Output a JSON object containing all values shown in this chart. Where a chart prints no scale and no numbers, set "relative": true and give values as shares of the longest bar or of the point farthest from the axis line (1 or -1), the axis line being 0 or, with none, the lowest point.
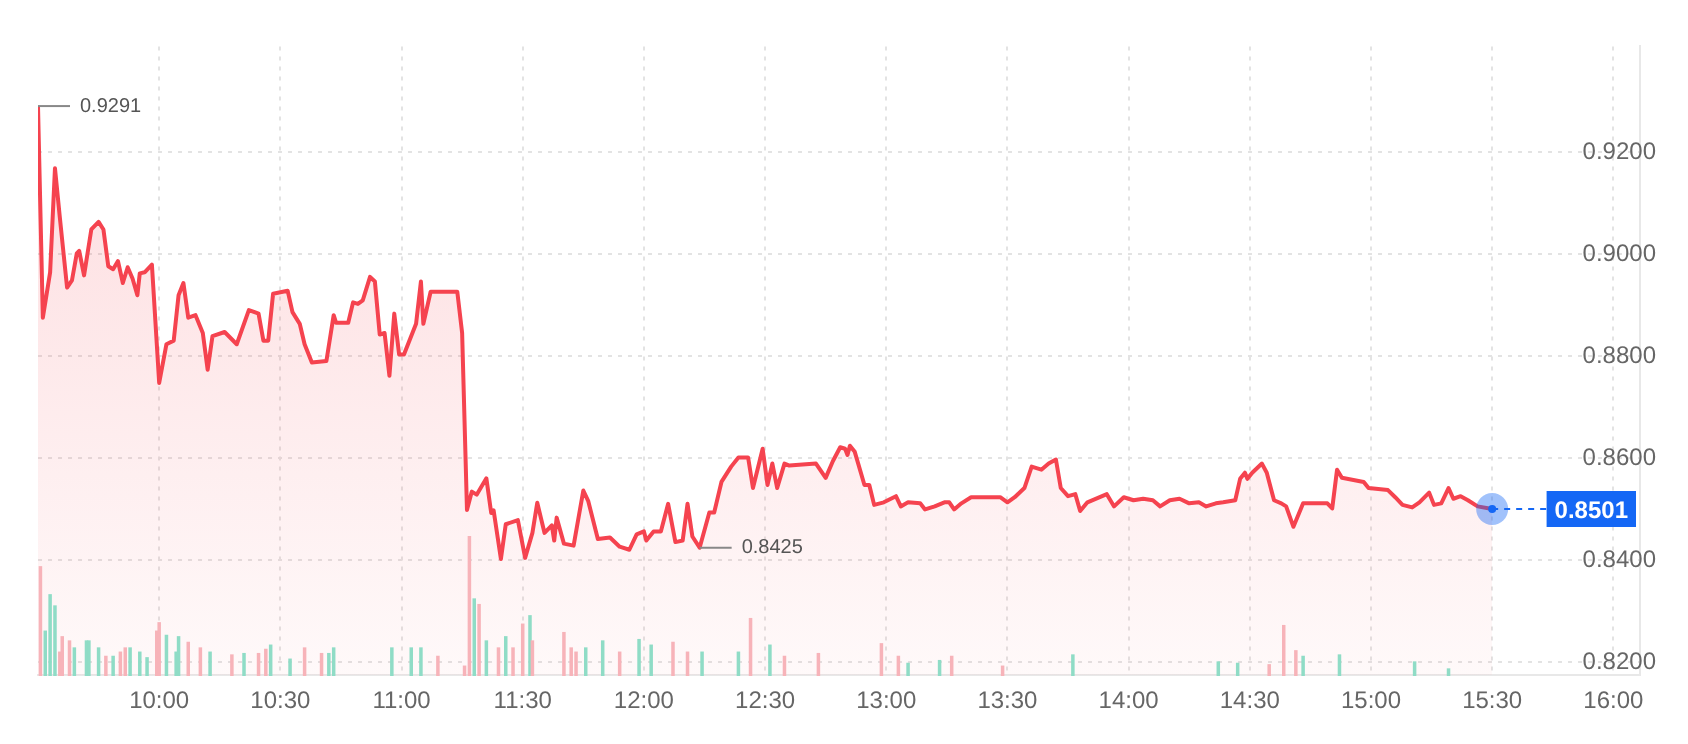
{
  "chart_data": [
    {
      "type": "area",
      "color": "#f5434f",
      "x": [
        9.5,
        9.52,
        9.55,
        9.57,
        9.59,
        9.62,
        9.64,
        9.66,
        9.67,
        9.69,
        9.72,
        9.75,
        9.77,
        9.79,
        9.81,
        9.83,
        9.85,
        9.87,
        9.89,
        9.91,
        9.92,
        9.94,
        9.97,
        10.0,
        10.03,
        10.06,
        10.08,
        10.1,
        10.12,
        10.15,
        10.18,
        10.2,
        10.22,
        10.27,
        10.32,
        10.37,
        10.41,
        10.43,
        10.45,
        10.47,
        10.53,
        10.55,
        10.58,
        10.6,
        10.63,
        10.69,
        10.72,
        10.73,
        10.78,
        10.8,
        10.82,
        10.84,
        10.87,
        10.89,
        10.91,
        10.93,
        10.95,
        10.97,
        10.99,
        11.01,
        11.06,
        11.08,
        11.09,
        11.12,
        11.23,
        11.25,
        11.27,
        11.29,
        11.31,
        11.35,
        11.37,
        11.38,
        11.41,
        11.43,
        11.48,
        11.51,
        11.54,
        11.56,
        11.59,
        11.62,
        11.63,
        11.64,
        11.67,
        11.71,
        11.75,
        11.77,
        11.81,
        11.86,
        11.9,
        11.94,
        11.97,
        12.0,
        12.01,
        12.04,
        12.07,
        12.1,
        12.13,
        12.16,
        12.18,
        12.2,
        12.23,
        12.27,
        12.29,
        12.32,
        12.36,
        12.39,
        12.43,
        12.45,
        12.49,
        12.51,
        12.53,
        12.55,
        12.58,
        12.6,
        12.71,
        12.75,
        12.78,
        12.81,
        12.83,
        12.84,
        12.85,
        12.87,
        12.91,
        12.93,
        12.95,
        12.99,
        13.04,
        13.06,
        13.09,
        13.14,
        13.16,
        13.2,
        13.24,
        13.26,
        13.28,
        13.31,
        13.35,
        13.47,
        13.5,
        13.53,
        13.57,
        13.6,
        13.64,
        13.67,
        13.7,
        13.72,
        13.75,
        13.78,
        13.8,
        13.83,
        13.91,
        13.94,
        13.98,
        14.02,
        14.06,
        14.1,
        14.13,
        14.17,
        14.21,
        14.25,
        14.29,
        14.32,
        14.36,
        14.39,
        14.44,
        14.46,
        14.48,
        14.49,
        14.51,
        14.55,
        14.57,
        14.6,
        14.63,
        14.65,
        14.68,
        14.72,
        14.82,
        14.84,
        14.86,
        14.88,
        14.97,
        14.99,
        15.07,
        15.1,
        15.13,
        15.17,
        15.2,
        15.24,
        15.26,
        15.29,
        15.32,
        15.34,
        15.37,
        15.4,
        15.44,
        15.5
      ],
      "values": [
        0.9291,
        0.8876,
        0.8965,
        0.9169,
        0.9073,
        0.8935,
        0.8949,
        0.9002,
        0.9007,
        0.8959,
        0.9049,
        0.9064,
        0.9049,
        0.8977,
        0.8971,
        0.8987,
        0.8944,
        0.8975,
        0.8953,
        0.892,
        0.8963,
        0.8965,
        0.898,
        0.8748,
        0.8824,
        0.8831,
        0.892,
        0.8944,
        0.8876,
        0.8881,
        0.8846,
        0.8774,
        0.884,
        0.8848,
        0.8824,
        0.8891,
        0.8884,
        0.8831,
        0.8831,
        0.8923,
        0.8929,
        0.8887,
        0.8864,
        0.8824,
        0.8788,
        0.8791,
        0.8881,
        0.8866,
        0.8866,
        0.8906,
        0.8903,
        0.891,
        0.8956,
        0.8947,
        0.8843,
        0.8846,
        0.8762,
        0.8884,
        0.8804,
        0.8804,
        0.8864,
        0.8947,
        0.8864,
        0.8927,
        0.8927,
        0.8846,
        0.8499,
        0.8535,
        0.8529,
        0.8561,
        0.8493,
        0.8498,
        0.8403,
        0.8471,
        0.8479,
        0.8405,
        0.8454,
        0.8513,
        0.8454,
        0.8469,
        0.8439,
        0.8484,
        0.8433,
        0.8429,
        0.8537,
        0.8517,
        0.8442,
        0.8445,
        0.8427,
        0.8421,
        0.8451,
        0.8457,
        0.8439,
        0.8457,
        0.8457,
        0.8511,
        0.8436,
        0.8439,
        0.8511,
        0.8447,
        0.8425,
        0.8494,
        0.8494,
        0.8554,
        0.8584,
        0.8602,
        0.8602,
        0.8542,
        0.8619,
        0.8548,
        0.859,
        0.8542,
        0.859,
        0.8586,
        0.859,
        0.8562,
        0.8595,
        0.8622,
        0.8619,
        0.8607,
        0.8625,
        0.8613,
        0.8548,
        0.8548,
        0.8509,
        0.8514,
        0.8526,
        0.8506,
        0.8514,
        0.8512,
        0.85,
        0.8506,
        0.8514,
        0.8514,
        0.85,
        0.8512,
        0.8524,
        0.8524,
        0.8514,
        0.8524,
        0.8542,
        0.8584,
        0.8578,
        0.859,
        0.8598,
        0.8542,
        0.8526,
        0.853,
        0.8497,
        0.8514,
        0.853,
        0.8506,
        0.8524,
        0.8518,
        0.8521,
        0.8518,
        0.8506,
        0.8518,
        0.8521,
        0.8512,
        0.8514,
        0.8506,
        0.8512,
        0.8514,
        0.8518,
        0.856,
        0.8572,
        0.856,
        0.8572,
        0.859,
        0.8572,
        0.8518,
        0.8512,
        0.8506,
        0.8466,
        0.8512,
        0.8512,
        0.8502,
        0.8578,
        0.8562,
        0.8554,
        0.8542,
        0.8538,
        0.8524,
        0.8509,
        0.8504,
        0.8514,
        0.8533,
        0.8509,
        0.8512,
        0.8542,
        0.8521,
        0.8526,
        0.8518,
        0.8506,
        0.8501
      ],
      "xlim": [
        9.5,
        16.11
      ],
      "xticks": [
        {
          "value": 10,
          "label": "10:00"
        },
        {
          "value": 10.5,
          "label": "10:30"
        },
        {
          "value": 11,
          "label": "11:00"
        },
        {
          "value": 11.5,
          "label": "11:30"
        },
        {
          "value": 12,
          "label": "12:00"
        },
        {
          "value": 12.5,
          "label": "12:30"
        },
        {
          "value": 13,
          "label": "13:00"
        },
        {
          "value": 13.5,
          "label": "13:30"
        },
        {
          "value": 14,
          "label": "14:00"
        },
        {
          "value": 14.5,
          "label": "14:30"
        },
        {
          "value": 15,
          "label": "15:00"
        },
        {
          "value": 15.5,
          "label": "15:30"
        },
        {
          "value": 16,
          "label": "16:00"
        }
      ],
      "ylim": [
        0.8175,
        0.9408
      ],
      "yticks": [
        {
          "value": 0.82,
          "label": "0.8200"
        },
        {
          "value": 0.84,
          "label": "0.8400"
        },
        {
          "value": 0.86,
          "label": "0.8600"
        },
        {
          "value": 0.88,
          "label": "0.8800"
        },
        {
          "value": 0.9,
          "label": "0.9000"
        },
        {
          "value": 0.92,
          "label": "0.9200"
        }
      ],
      "grid": true,
      "annotations": [
        {
          "text": "0.9291",
          "x": 9.5,
          "y": 0.9291
        },
        {
          "text": "0.8425",
          "x": 12.23,
          "y": 0.8425
        }
      ],
      "ref_lines": [
        {
          "axis": "y",
          "value": 0.8501,
          "label": "0.8501",
          "color": "#1467f5",
          "line_style": "dashed"
        }
      ]
    },
    {
      "type": "bar",
      "relative": true,
      "xlim": [
        9.5,
        16.11
      ],
      "x": [
        9.51,
        9.53,
        9.55,
        9.57,
        9.59,
        9.6,
        9.63,
        9.65,
        9.7,
        9.71,
        9.75,
        9.78,
        9.81,
        9.84,
        9.86,
        9.88,
        9.92,
        9.95,
        9.99,
        10.0,
        10.03,
        10.07,
        10.08,
        10.12,
        10.17,
        10.21,
        10.3,
        10.35,
        10.41,
        10.44,
        10.46,
        10.54,
        10.6,
        10.67,
        10.7,
        10.72,
        10.96,
        11.04,
        11.08,
        11.15,
        11.26,
        11.28,
        11.3,
        11.32,
        11.35,
        11.4,
        11.43,
        11.46,
        11.5,
        11.53,
        11.54,
        11.67,
        11.7,
        11.72,
        11.76,
        11.83,
        11.9,
        11.98,
        12.03,
        12.12,
        12.18,
        12.24,
        12.39,
        12.44,
        12.52,
        12.58,
        12.72,
        12.98,
        13.05,
        13.09,
        13.22,
        13.27,
        13.48,
        13.77,
        14.37,
        14.45,
        14.58,
        14.64,
        14.69,
        14.72,
        14.87,
        15.18,
        15.32
      ],
      "values": [
        0.78,
        0.32,
        0.58,
        0.5,
        0.17,
        0.28,
        0.25,
        0.2,
        0.25,
        0.25,
        0.2,
        0.14,
        0.14,
        0.17,
        0.2,
        0.2,
        0.17,
        0.13,
        0.32,
        0.38,
        0.29,
        0.17,
        0.28,
        0.24,
        0.2,
        0.17,
        0.15,
        0.16,
        0.16,
        0.19,
        0.22,
        0.12,
        0.2,
        0.16,
        0.16,
        0.2,
        0.2,
        0.2,
        0.2,
        0.14,
        0.07,
        1,
        0.55,
        0.51,
        0.25,
        0.2,
        0.28,
        0.2,
        0.37,
        0.43,
        0.25,
        0.31,
        0.2,
        0.17,
        0.2,
        0.25,
        0.17,
        0.26,
        0.22,
        0.24,
        0.17,
        0.17,
        0.17,
        0.41,
        0.22,
        0.14,
        0.16,
        0.23,
        0.14,
        0.09,
        0.11,
        0.14,
        0.07,
        0.15,
        0.1,
        0.09,
        0.08,
        0.36,
        0.18,
        0.14,
        0.15,
        0.1,
        0.05
      ],
      "colors": [
        "#f7b3b9",
        "#8fdcc6",
        "#8fdcc6",
        "#8fdcc6",
        "#f7b3b9",
        "#f7b3b9",
        "#f7b3b9",
        "#8fdcc6",
        "#8fdcc6",
        "#8fdcc6",
        "#8fdcc6",
        "#f7b3b9",
        "#8fdcc6",
        "#f7b3b9",
        "#f7b3b9",
        "#8fdcc6",
        "#8fdcc6",
        "#8fdcc6",
        "#f7b3b9",
        "#f7b3b9",
        "#8fdcc6",
        "#8fdcc6",
        "#8fdcc6",
        "#f7b3b9",
        "#f7b3b9",
        "#8fdcc6",
        "#f7b3b9",
        "#8fdcc6",
        "#f7b3b9",
        "#f7b3b9",
        "#8fdcc6",
        "#8fdcc6",
        "#f7b3b9",
        "#f7b3b9",
        "#8fdcc6",
        "#8fdcc6",
        "#8fdcc6",
        "#8fdcc6",
        "#8fdcc6",
        "#f7b3b9",
        "#f7b3b9",
        "#f7b3b9",
        "#8fdcc6",
        "#f7b3b9",
        "#8fdcc6",
        "#f7b3b9",
        "#8fdcc6",
        "#f7b3b9",
        "#f7b3b9",
        "#8fdcc6",
        "#f7b3b9",
        "#f7b3b9",
        "#f7b3b9",
        "#f7b3b9",
        "#8fdcc6",
        "#8fdcc6",
        "#f7b3b9",
        "#8fdcc6",
        "#8fdcc6",
        "#f7b3b9",
        "#f7b3b9",
        "#8fdcc6",
        "#8fdcc6",
        "#f7b3b9",
        "#8fdcc6",
        "#f7b3b9",
        "#f7b3b9",
        "#f7b3b9",
        "#f7b3b9",
        "#8fdcc6",
        "#8fdcc6",
        "#f7b3b9",
        "#f7b3b9",
        "#8fdcc6",
        "#8fdcc6",
        "#8fdcc6",
        "#f7b3b9",
        "#f7b3b9",
        "#f7b3b9",
        "#8fdcc6",
        "#8fdcc6",
        "#8fdcc6",
        "#8fdcc6"
      ]
    }
  ]
}
